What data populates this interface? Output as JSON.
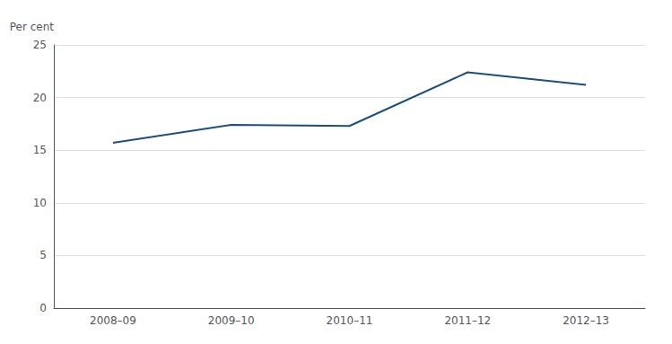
{
  "chart_data": {
    "type": "line",
    "ylabel": "Per cent",
    "categories": [
      "2008–09",
      "2009–10",
      "2010–11",
      "2011–12",
      "2012–13"
    ],
    "values": [
      15.7,
      17.4,
      17.3,
      22.4,
      21.2
    ],
    "color": "#1f4e79",
    "ylim": [
      0,
      25
    ],
    "yticks": [
      0,
      5,
      10,
      15,
      20,
      25
    ],
    "grid": true
  }
}
